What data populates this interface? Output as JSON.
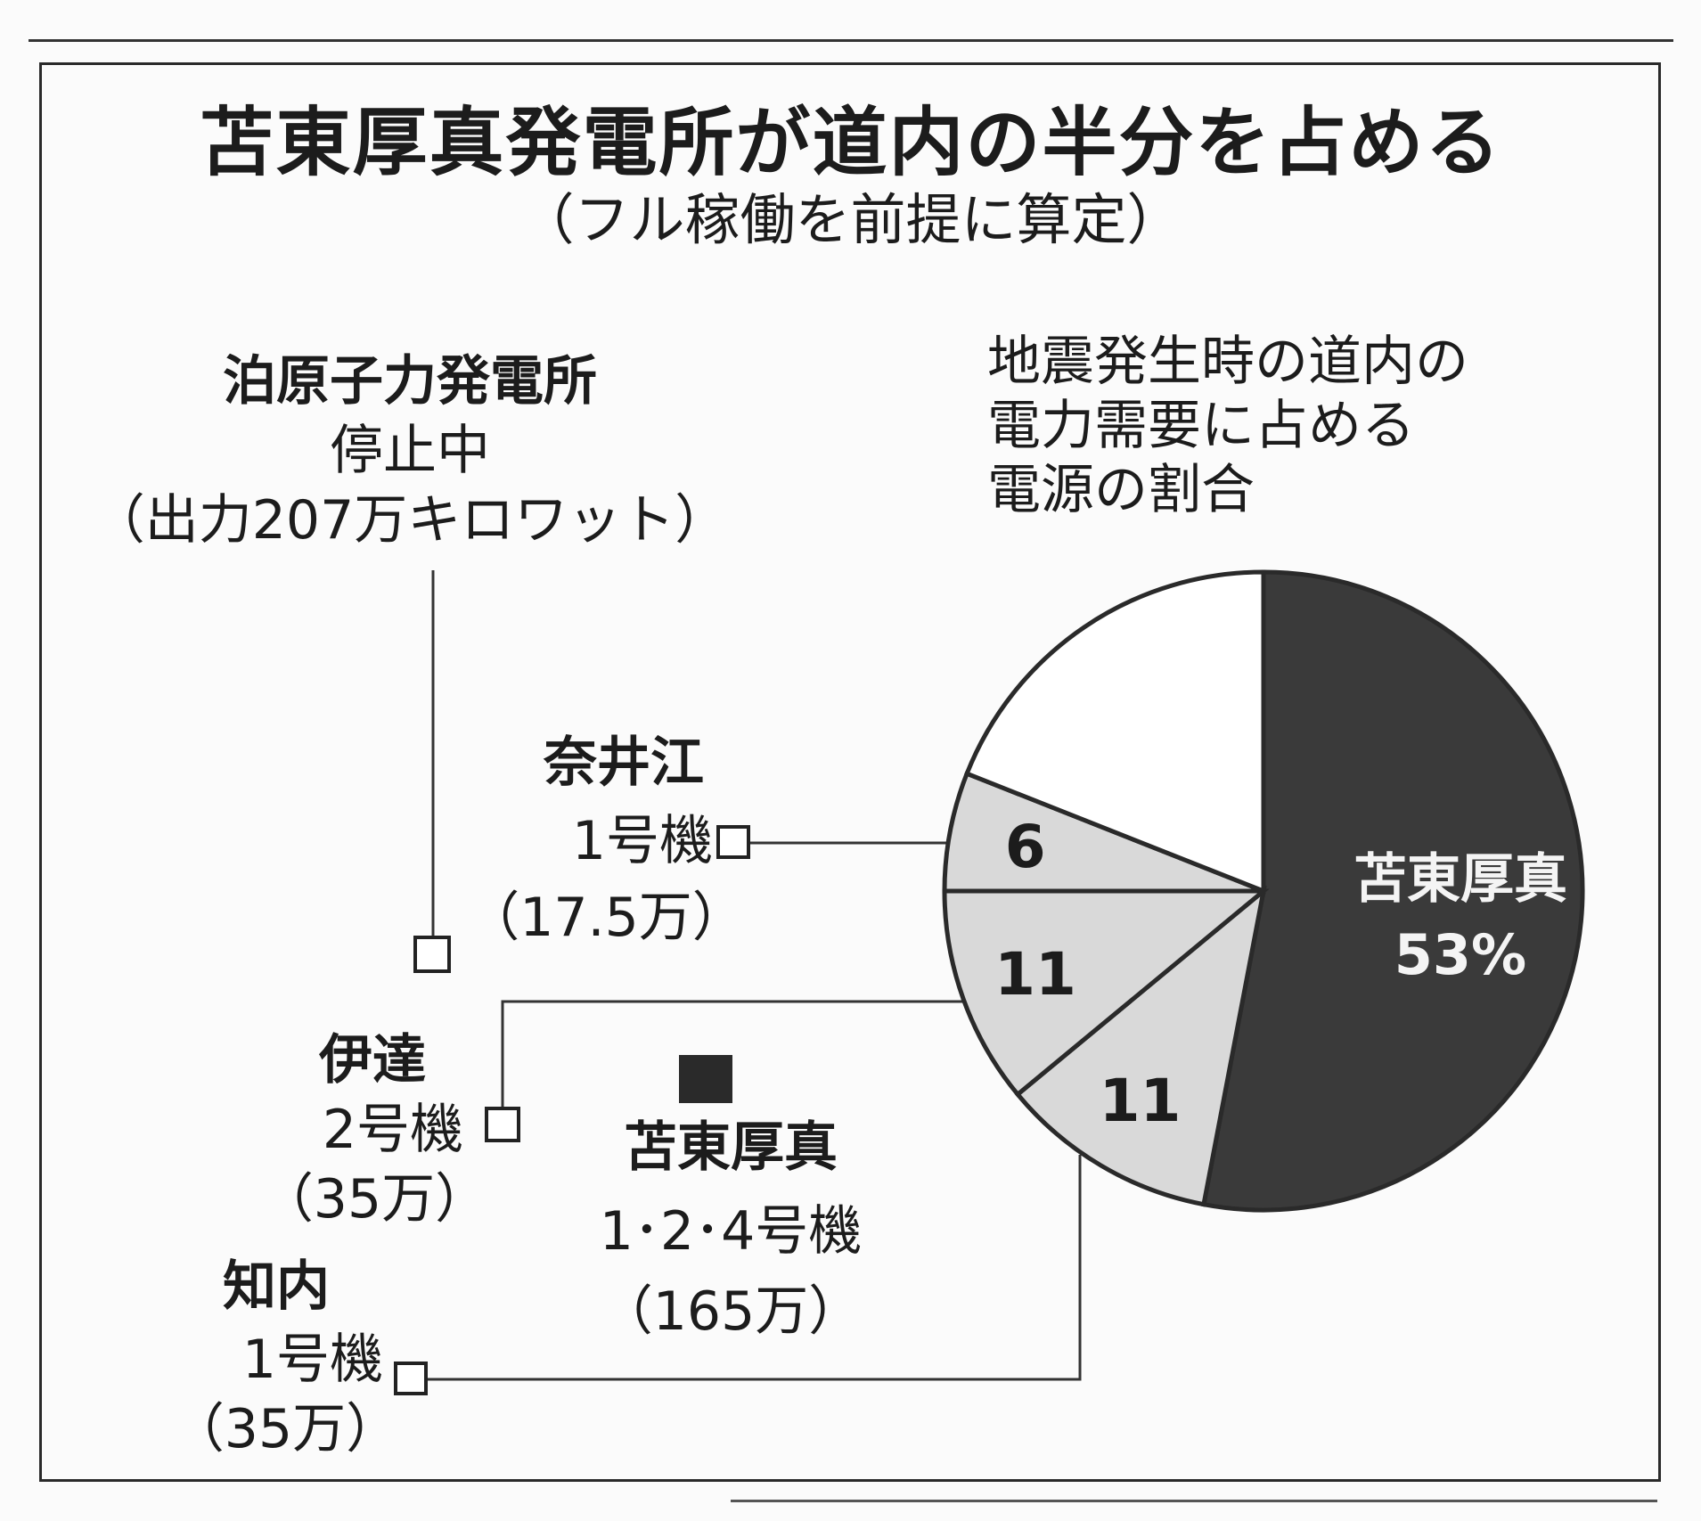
{
  "title": "苫東厚真発電所が道内の半分を占める",
  "subtitle": "（フル稼働を前提に算定）",
  "pie_title": [
    "地震発生時の道内の",
    "電力需要に占める",
    "電源の割合"
  ],
  "plants": [
    {
      "name": "泊原子力発電所",
      "unit": "停止中",
      "capacity": "（出力207万キロワット）"
    },
    {
      "name": "奈井江",
      "unit": "1号機",
      "capacity": "（17.5万）"
    },
    {
      "name": "伊達",
      "unit": "2号機",
      "capacity": "（35万）"
    },
    {
      "name": "苫東厚真",
      "unit": "1･2･4号機",
      "capacity": "（165万）"
    },
    {
      "name": "知内",
      "unit": "1号機",
      "capacity": "（35万）"
    }
  ],
  "chart_data": {
    "type": "pie",
    "title": "地震発生時の道内の電力需要に占める電源の割合",
    "slices": [
      {
        "label": "苫東厚真",
        "value": 53,
        "value_label": "53%",
        "color": "#3a3a3a"
      },
      {
        "label": "",
        "value": 11,
        "value_label": "11",
        "color": "#d9d9d9"
      },
      {
        "label": "",
        "value": 11,
        "value_label": "11",
        "color": "#d9d9d9"
      },
      {
        "label": "",
        "value": 6,
        "value_label": "6",
        "color": "#d9d9d9"
      },
      {
        "label": "",
        "value": 19,
        "value_label": "",
        "color": "#ffffff"
      }
    ]
  }
}
